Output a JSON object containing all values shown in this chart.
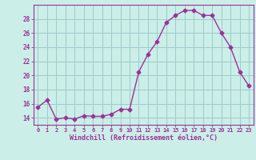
{
  "hours": [
    0,
    1,
    2,
    3,
    4,
    5,
    6,
    7,
    8,
    9,
    10,
    11,
    12,
    13,
    14,
    15,
    16,
    17,
    18,
    19,
    20,
    21,
    22,
    23
  ],
  "values": [
    15.5,
    16.5,
    13.8,
    14.0,
    13.8,
    14.3,
    14.2,
    14.2,
    14.5,
    15.2,
    15.2,
    20.5,
    23.0,
    24.8,
    27.5,
    28.5,
    29.2,
    29.2,
    28.5,
    28.5,
    26.0,
    24.0,
    20.5,
    18.5
  ],
  "line_color": "#993399",
  "marker": "D",
  "marker_size": 2.5,
  "bg_color": "#cceee8",
  "grid_color": "#99cccc",
  "xlabel": "Windchill (Refroidissement éolien,°C)",
  "ylim": [
    13,
    30
  ],
  "xlim": [
    -0.5,
    23.5
  ],
  "yticks": [
    14,
    16,
    18,
    20,
    22,
    24,
    26,
    28
  ],
  "xticks": [
    0,
    1,
    2,
    3,
    4,
    5,
    6,
    7,
    8,
    9,
    10,
    11,
    12,
    13,
    14,
    15,
    16,
    17,
    18,
    19,
    20,
    21,
    22,
    23
  ]
}
